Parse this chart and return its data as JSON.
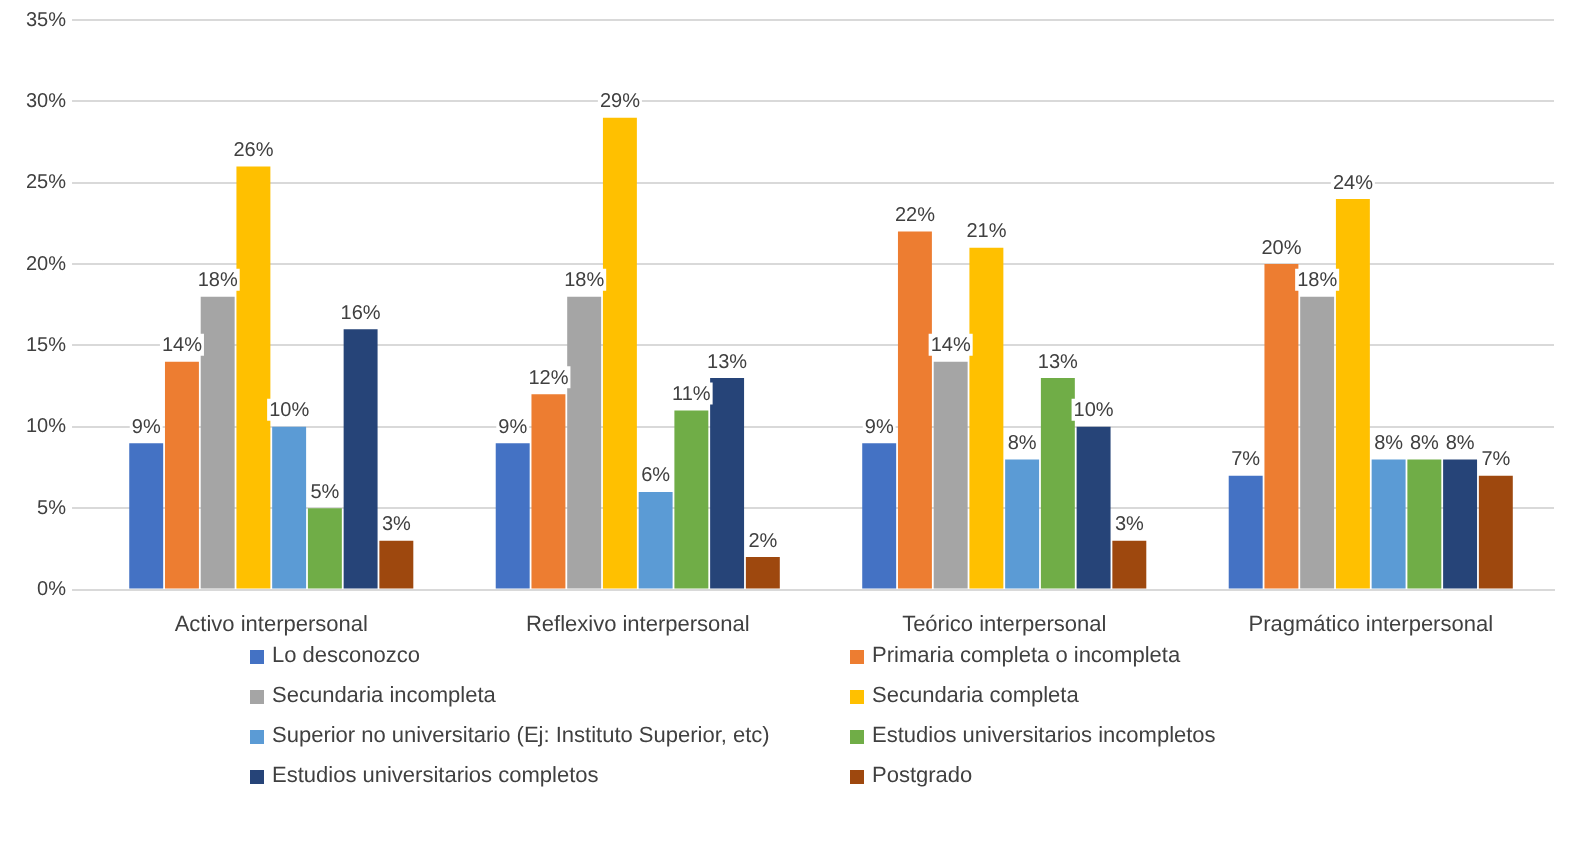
{
  "chart_data": {
    "type": "bar",
    "categories": [
      "Activo interpersonal",
      "Reflexivo interpersonal",
      "Teórico interpersonal",
      "Pragmático interpersonal"
    ],
    "series": [
      {
        "name": "Lo desconozco",
        "color": "#4472c4",
        "values": [
          9,
          9,
          9,
          7
        ],
        "value_labels": [
          "9%",
          "9%",
          "9%",
          "7%"
        ]
      },
      {
        "name": "Primaria completa o incompleta",
        "color": "#ed7d31",
        "values": [
          14,
          12,
          22,
          20
        ],
        "value_labels": [
          "14%",
          "12%",
          "22%",
          "20%"
        ]
      },
      {
        "name": "Secundaria incompleta",
        "color": "#a5a5a5",
        "values": [
          18,
          18,
          14,
          18
        ],
        "value_labels": [
          "18%",
          "18%",
          "14%",
          "18%"
        ]
      },
      {
        "name": "Secundaria completa",
        "color": "#ffc000",
        "values": [
          26,
          29,
          21,
          24
        ],
        "value_labels": [
          "26%",
          "29%",
          "21%",
          "24%"
        ]
      },
      {
        "name": "Superior no universitario (Ej: Instituto Superior, etc)",
        "color": "#5b9bd5",
        "values": [
          10,
          6,
          8,
          8
        ],
        "value_labels": [
          "10%",
          "6%",
          "8%",
          "8%"
        ]
      },
      {
        "name": "Estudios universitarios incompletos",
        "color": "#70ad47",
        "values": [
          5,
          11,
          13,
          8
        ],
        "value_labels": [
          "5%",
          "11%",
          "13%",
          "8%"
        ]
      },
      {
        "name": "Estudios universitarios completos",
        "color": "#264478",
        "values": [
          16,
          13,
          10,
          8
        ],
        "value_labels": [
          "16%",
          "13%",
          "10%",
          "8%"
        ]
      },
      {
        "name": "Postgrado",
        "color": "#9e480e",
        "values": [
          3,
          2,
          3,
          7
        ],
        "value_labels": [
          "3%",
          "2%",
          "3%",
          "7%"
        ]
      }
    ],
    "ylim": [
      0,
      35
    ],
    "yticks": [
      {
        "value": 0,
        "label": "0%"
      },
      {
        "value": 5,
        "label": "5%"
      },
      {
        "value": 10,
        "label": "10%"
      },
      {
        "value": 15,
        "label": "15%"
      },
      {
        "value": 20,
        "label": "20%"
      },
      {
        "value": 25,
        "label": "25%"
      },
      {
        "value": 30,
        "label": "30%"
      },
      {
        "value": 35,
        "label": "35%"
      }
    ],
    "grid": "y",
    "legend": "bottom"
  }
}
